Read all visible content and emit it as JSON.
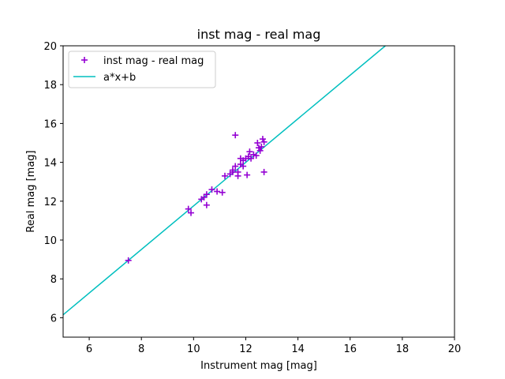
{
  "chart_data": {
    "type": "scatter",
    "title": "inst mag - real mag",
    "xlabel": "Instrument mag [mag]",
    "ylabel": "Real mag [mag]",
    "xlim": [
      5,
      20
    ],
    "ylim": [
      5,
      20
    ],
    "xticks": [
      6,
      8,
      10,
      12,
      14,
      16,
      18,
      20
    ],
    "yticks": [
      6,
      8,
      10,
      12,
      14,
      16,
      18,
      20
    ],
    "grid": false,
    "legend_position": "upper-left",
    "series": [
      {
        "name": "inst mag - real mag",
        "kind": "scatter",
        "marker": "+",
        "color": "#9400d3",
        "points": [
          [
            7.5,
            8.95
          ],
          [
            9.8,
            11.6
          ],
          [
            9.9,
            11.4
          ],
          [
            10.3,
            12.1
          ],
          [
            10.4,
            12.2
          ],
          [
            10.5,
            12.35
          ],
          [
            10.5,
            11.8
          ],
          [
            10.7,
            12.6
          ],
          [
            10.9,
            12.5
          ],
          [
            11.1,
            12.45
          ],
          [
            11.2,
            13.3
          ],
          [
            11.4,
            13.4
          ],
          [
            11.5,
            13.6
          ],
          [
            11.5,
            13.5
          ],
          [
            11.6,
            13.8
          ],
          [
            11.6,
            15.4
          ],
          [
            11.7,
            13.3
          ],
          [
            11.7,
            13.5
          ],
          [
            11.8,
            13.9
          ],
          [
            11.8,
            14.2
          ],
          [
            11.9,
            14.1
          ],
          [
            11.9,
            13.8
          ],
          [
            12.0,
            14.2
          ],
          [
            12.05,
            13.35
          ],
          [
            12.1,
            14.3
          ],
          [
            12.15,
            14.55
          ],
          [
            12.2,
            14.2
          ],
          [
            12.3,
            14.4
          ],
          [
            12.4,
            14.35
          ],
          [
            12.45,
            15.0
          ],
          [
            12.5,
            14.75
          ],
          [
            12.55,
            14.6
          ],
          [
            12.6,
            14.8
          ],
          [
            12.65,
            15.2
          ],
          [
            12.7,
            15.05
          ],
          [
            12.7,
            13.5
          ]
        ]
      },
      {
        "name": "a*x+b",
        "kind": "line",
        "color": "#00bfbf",
        "x": [
          5,
          17.35
        ],
        "y": [
          6.15,
          20
        ]
      }
    ]
  }
}
